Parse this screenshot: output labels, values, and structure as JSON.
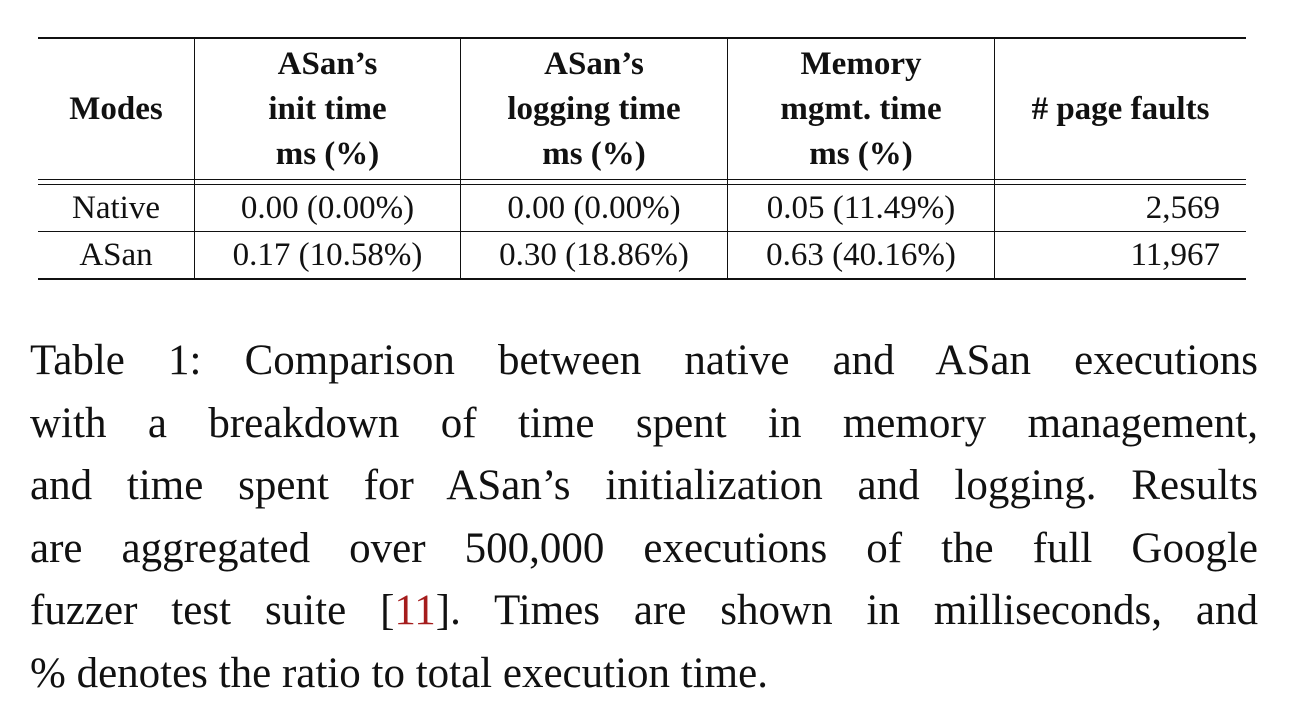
{
  "table": {
    "columns": [
      {
        "lines": [
          "Modes"
        ]
      },
      {
        "lines": [
          "ASan’s",
          "init time",
          "ms (%)"
        ]
      },
      {
        "lines": [
          "ASan’s",
          "logging time",
          "ms (%)"
        ]
      },
      {
        "lines": [
          "Memory",
          "mgmt. time",
          "ms (%)"
        ]
      },
      {
        "lines": [
          "# page faults"
        ]
      }
    ],
    "rows": [
      {
        "mode": "Native",
        "init": "0.00 (0.00%)",
        "logging": "0.00 (0.00%)",
        "memory": "0.05 (11.49%)",
        "page_faults": "2,569"
      },
      {
        "mode": "ASan",
        "init": "0.17 (10.58%)",
        "logging": "0.30 (18.86%)",
        "memory": "0.63 (40.16%)",
        "page_faults": "11,967"
      }
    ]
  },
  "caption": {
    "line1": "Table 1: Comparison between native and ASan executions",
    "line2": "with a breakdown of time spent in memory management,",
    "line3": "and time spent for ASan’s initialization and logging. Results",
    "line4": "are aggregated over 500,000 executions of the full Google",
    "line5_pre": "fuzzer test suite [",
    "citation": "11",
    "line5_post": "]. Times are shown in milliseconds, and",
    "line6": "% denotes the ratio to total execution time."
  },
  "colors": {
    "citation_link": "#a51c1c",
    "text": "#111111"
  }
}
